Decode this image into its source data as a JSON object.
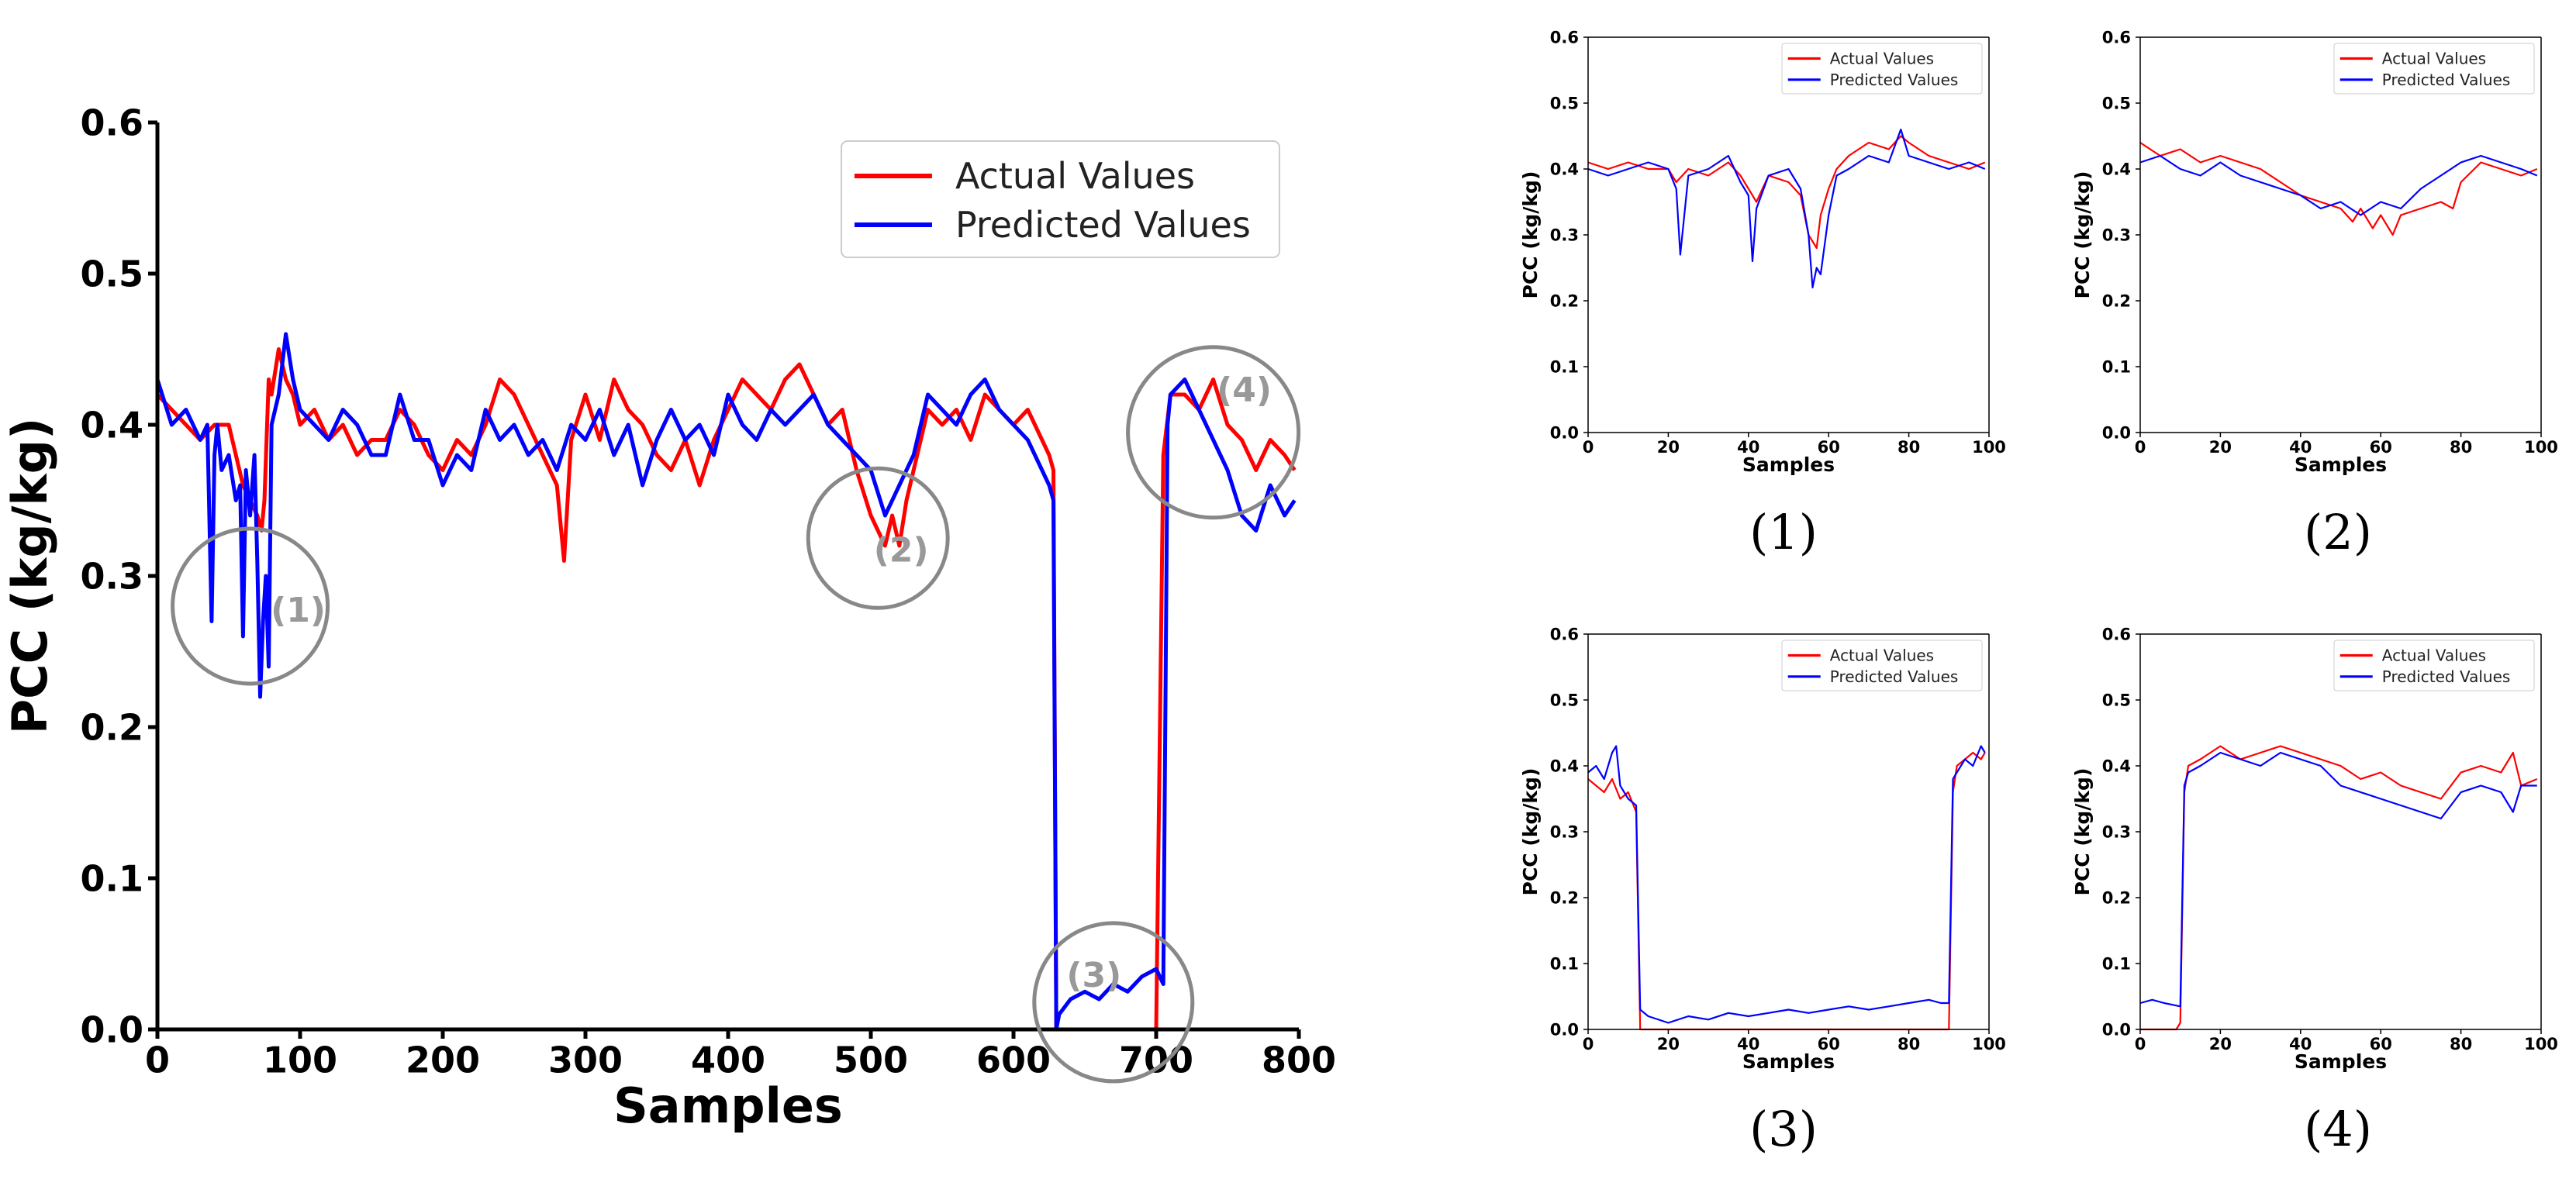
{
  "chart_data": [
    {
      "type": "line",
      "id": "overview",
      "title": "",
      "xlabel": "Samples",
      "ylabel": "PCC (kg/kg)",
      "xlim": [
        0,
        800
      ],
      "ylim": [
        0,
        0.6
      ],
      "xticks": [
        "0",
        "100",
        "200",
        "300",
        "400",
        "500",
        "600",
        "700",
        "800"
      ],
      "yticks": [
        "0.0",
        "0.1",
        "0.2",
        "0.3",
        "0.4",
        "0.5",
        "0.6"
      ],
      "legend": [
        "Actual Values",
        "Predicted Values"
      ],
      "legend_position": "top-right",
      "colors": {
        "actual": "#ff0000",
        "predicted": "#0000ff",
        "circle": "#888888"
      },
      "annotations": [
        {
          "label": "(1)",
          "x": 65,
          "y": 0.28
        },
        {
          "label": "(2)",
          "x": 505,
          "y": 0.325
        },
        {
          "label": "(3)",
          "x": 670,
          "y": 0.018
        },
        {
          "label": "(4)",
          "x": 740,
          "y": 0.395
        }
      ],
      "series": [
        {
          "name": "Actual Values",
          "key": "actual",
          "x": [
            0,
            10,
            20,
            30,
            40,
            50,
            55,
            60,
            65,
            70,
            73,
            75,
            78,
            80,
            85,
            90,
            95,
            100,
            110,
            120,
            130,
            140,
            150,
            160,
            170,
            180,
            190,
            200,
            210,
            220,
            230,
            240,
            250,
            260,
            270,
            280,
            285,
            290,
            300,
            310,
            320,
            330,
            340,
            350,
            360,
            370,
            380,
            390,
            400,
            410,
            420,
            430,
            440,
            450,
            460,
            470,
            480,
            490,
            500,
            505,
            510,
            515,
            520,
            525,
            530,
            540,
            550,
            560,
            570,
            580,
            590,
            600,
            610,
            620,
            625,
            628,
            630,
            632,
            700,
            705,
            710,
            720,
            730,
            740,
            750,
            760,
            770,
            780,
            790,
            797
          ],
          "y": [
            0.42,
            0.41,
            0.4,
            0.39,
            0.4,
            0.4,
            0.38,
            0.36,
            0.35,
            0.34,
            0.33,
            0.35,
            0.43,
            0.42,
            0.45,
            0.43,
            0.42,
            0.4,
            0.41,
            0.39,
            0.4,
            0.38,
            0.39,
            0.39,
            0.41,
            0.4,
            0.38,
            0.37,
            0.39,
            0.38,
            0.4,
            0.43,
            0.42,
            0.4,
            0.38,
            0.36,
            0.31,
            0.39,
            0.42,
            0.39,
            0.43,
            0.41,
            0.4,
            0.38,
            0.37,
            0.39,
            0.36,
            0.39,
            0.41,
            0.43,
            0.42,
            0.41,
            0.43,
            0.44,
            0.42,
            0.4,
            0.41,
            0.37,
            0.34,
            0.33,
            0.32,
            0.34,
            0.32,
            0.35,
            0.37,
            0.41,
            0.4,
            0.41,
            0.39,
            0.42,
            0.41,
            0.4,
            0.41,
            0.39,
            0.38,
            0.37,
            0.0,
            0.0,
            0.0,
            0.38,
            0.42,
            0.42,
            0.41,
            0.43,
            0.4,
            0.39,
            0.37,
            0.39,
            0.38,
            0.37
          ]
        },
        {
          "name": "Predicted Values",
          "key": "predicted",
          "x": [
            0,
            10,
            20,
            30,
            35,
            38,
            40,
            42,
            45,
            50,
            55,
            58,
            60,
            62,
            65,
            68,
            70,
            72,
            74,
            76,
            78,
            80,
            85,
            90,
            95,
            100,
            110,
            120,
            130,
            140,
            150,
            160,
            170,
            180,
            190,
            200,
            210,
            220,
            230,
            240,
            250,
            260,
            270,
            280,
            290,
            300,
            310,
            320,
            330,
            340,
            350,
            360,
            370,
            380,
            390,
            400,
            410,
            420,
            430,
            440,
            450,
            460,
            470,
            480,
            490,
            500,
            510,
            520,
            530,
            540,
            550,
            560,
            570,
            580,
            590,
            600,
            610,
            620,
            625,
            628,
            630,
            632,
            640,
            650,
            660,
            670,
            680,
            690,
            700,
            705,
            708,
            710,
            720,
            730,
            740,
            750,
            760,
            770,
            780,
            790,
            797
          ],
          "y": [
            0.43,
            0.4,
            0.41,
            0.39,
            0.4,
            0.27,
            0.38,
            0.4,
            0.37,
            0.38,
            0.35,
            0.36,
            0.26,
            0.37,
            0.34,
            0.38,
            0.31,
            0.22,
            0.27,
            0.3,
            0.24,
            0.4,
            0.42,
            0.46,
            0.43,
            0.41,
            0.4,
            0.39,
            0.41,
            0.4,
            0.38,
            0.38,
            0.42,
            0.39,
            0.39,
            0.36,
            0.38,
            0.37,
            0.41,
            0.39,
            0.4,
            0.38,
            0.39,
            0.37,
            0.4,
            0.39,
            0.41,
            0.38,
            0.4,
            0.36,
            0.39,
            0.41,
            0.39,
            0.4,
            0.38,
            0.42,
            0.4,
            0.39,
            0.41,
            0.4,
            0.41,
            0.42,
            0.4,
            0.39,
            0.38,
            0.37,
            0.34,
            0.36,
            0.38,
            0.42,
            0.41,
            0.4,
            0.42,
            0.43,
            0.41,
            0.4,
            0.39,
            0.37,
            0.36,
            0.35,
            0.0,
            0.01,
            0.02,
            0.025,
            0.02,
            0.03,
            0.025,
            0.035,
            0.04,
            0.03,
            0.4,
            0.42,
            0.43,
            0.41,
            0.39,
            0.37,
            0.34,
            0.33,
            0.36,
            0.34,
            0.35
          ]
        }
      ]
    },
    {
      "type": "line",
      "id": "zoom-1",
      "caption": "(1)",
      "xlabel": "Samples",
      "ylabel": "PCC (kg/kg)",
      "xlim": [
        0,
        100
      ],
      "ylim": [
        0,
        0.6
      ],
      "xticks": [
        "0",
        "20",
        "40",
        "60",
        "80",
        "100"
      ],
      "yticks": [
        "0.0",
        "0.1",
        "0.2",
        "0.3",
        "0.4",
        "0.5",
        "0.6"
      ],
      "legend": [
        "Actual Values",
        "Predicted Values"
      ],
      "series": [
        {
          "name": "Actual Values",
          "key": "actual",
          "x": [
            0,
            5,
            10,
            15,
            20,
            22,
            25,
            30,
            35,
            38,
            40,
            42,
            45,
            50,
            53,
            55,
            57,
            58,
            60,
            62,
            65,
            70,
            75,
            78,
            80,
            85,
            90,
            95,
            99
          ],
          "y": [
            0.41,
            0.4,
            0.41,
            0.4,
            0.4,
            0.38,
            0.4,
            0.39,
            0.41,
            0.39,
            0.37,
            0.35,
            0.39,
            0.38,
            0.36,
            0.3,
            0.28,
            0.33,
            0.37,
            0.4,
            0.42,
            0.44,
            0.43,
            0.45,
            0.44,
            0.42,
            0.41,
            0.4,
            0.41
          ]
        },
        {
          "name": "Predicted Values",
          "key": "predicted",
          "x": [
            0,
            5,
            10,
            15,
            20,
            22,
            23,
            25,
            30,
            35,
            38,
            40,
            41,
            42,
            45,
            50,
            53,
            55,
            56,
            57,
            58,
            60,
            62,
            65,
            70,
            75,
            78,
            80,
            85,
            90,
            95,
            99
          ],
          "y": [
            0.4,
            0.39,
            0.4,
            0.41,
            0.4,
            0.37,
            0.27,
            0.39,
            0.4,
            0.42,
            0.38,
            0.36,
            0.26,
            0.34,
            0.39,
            0.4,
            0.37,
            0.3,
            0.22,
            0.25,
            0.24,
            0.33,
            0.39,
            0.4,
            0.42,
            0.41,
            0.46,
            0.42,
            0.41,
            0.4,
            0.41,
            0.4
          ]
        }
      ]
    },
    {
      "type": "line",
      "id": "zoom-2",
      "caption": "(2)",
      "xlabel": "Samples",
      "ylabel": "PCC (kg/kg)",
      "xlim": [
        0,
        100
      ],
      "ylim": [
        0,
        0.6
      ],
      "xticks": [
        "0",
        "20",
        "40",
        "60",
        "80",
        "100"
      ],
      "yticks": [
        "0.0",
        "0.1",
        "0.2",
        "0.3",
        "0.4",
        "0.5",
        "0.6"
      ],
      "legend": [
        "Actual Values",
        "Predicted Values"
      ],
      "series": [
        {
          "name": "Actual Values",
          "key": "actual",
          "x": [
            0,
            5,
            10,
            15,
            20,
            25,
            30,
            35,
            40,
            45,
            50,
            53,
            55,
            58,
            60,
            63,
            65,
            70,
            75,
            78,
            80,
            85,
            90,
            95,
            99
          ],
          "y": [
            0.44,
            0.42,
            0.43,
            0.41,
            0.42,
            0.41,
            0.4,
            0.38,
            0.36,
            0.35,
            0.34,
            0.32,
            0.34,
            0.31,
            0.33,
            0.3,
            0.33,
            0.34,
            0.35,
            0.34,
            0.38,
            0.41,
            0.4,
            0.39,
            0.4
          ]
        },
        {
          "name": "Predicted Values",
          "key": "predicted",
          "x": [
            0,
            5,
            10,
            15,
            20,
            25,
            30,
            35,
            40,
            45,
            50,
            55,
            60,
            65,
            70,
            75,
            80,
            85,
            90,
            95,
            99
          ],
          "y": [
            0.41,
            0.42,
            0.4,
            0.39,
            0.41,
            0.39,
            0.38,
            0.37,
            0.36,
            0.34,
            0.35,
            0.33,
            0.35,
            0.34,
            0.37,
            0.39,
            0.41,
            0.42,
            0.41,
            0.4,
            0.39
          ]
        }
      ]
    },
    {
      "type": "line",
      "id": "zoom-3",
      "caption": "(3)",
      "xlabel": "Samples",
      "ylabel": "PCC (kg/kg)",
      "xlim": [
        0,
        100
      ],
      "ylim": [
        0,
        0.6
      ],
      "xticks": [
        "0",
        "20",
        "40",
        "60",
        "80",
        "100"
      ],
      "yticks": [
        "0.0",
        "0.1",
        "0.2",
        "0.3",
        "0.4",
        "0.5",
        "0.6"
      ],
      "legend": [
        "Actual Values",
        "Predicted Values"
      ],
      "series": [
        {
          "name": "Actual Values",
          "key": "actual",
          "x": [
            0,
            2,
            4,
            6,
            8,
            10,
            12,
            13,
            14,
            89,
            90,
            91,
            92,
            94,
            96,
            98,
            99
          ],
          "y": [
            0.38,
            0.37,
            0.36,
            0.38,
            0.35,
            0.36,
            0.33,
            0.0,
            0.0,
            0.0,
            0.0,
            0.36,
            0.4,
            0.41,
            0.42,
            0.41,
            0.42
          ]
        },
        {
          "name": "Predicted Values",
          "key": "predicted",
          "x": [
            0,
            2,
            4,
            6,
            7,
            8,
            10,
            12,
            13,
            15,
            20,
            25,
            30,
            35,
            40,
            45,
            50,
            55,
            60,
            65,
            70,
            75,
            80,
            85,
            88,
            90,
            91,
            92,
            94,
            96,
            98,
            99
          ],
          "y": [
            0.39,
            0.4,
            0.38,
            0.42,
            0.43,
            0.37,
            0.35,
            0.34,
            0.03,
            0.02,
            0.01,
            0.02,
            0.015,
            0.025,
            0.02,
            0.025,
            0.03,
            0.025,
            0.03,
            0.035,
            0.03,
            0.035,
            0.04,
            0.045,
            0.04,
            0.04,
            0.38,
            0.39,
            0.41,
            0.4,
            0.43,
            0.42
          ]
        }
      ]
    },
    {
      "type": "line",
      "id": "zoom-4",
      "caption": "(4)",
      "xlabel": "Samples",
      "ylabel": "PCC (kg/kg)",
      "xlim": [
        0,
        100
      ],
      "ylim": [
        0,
        0.6
      ],
      "xticks": [
        "0",
        "20",
        "40",
        "60",
        "80",
        "100"
      ],
      "yticks": [
        "0.0",
        "0.1",
        "0.2",
        "0.3",
        "0.4",
        "0.5",
        "0.6"
      ],
      "legend": [
        "Actual Values",
        "Predicted Values"
      ],
      "series": [
        {
          "name": "Actual Values",
          "key": "actual",
          "x": [
            0,
            5,
            9,
            10,
            11,
            12,
            15,
            20,
            25,
            30,
            35,
            40,
            45,
            50,
            55,
            60,
            65,
            70,
            75,
            80,
            85,
            90,
            93,
            95,
            99
          ],
          "y": [
            0.0,
            0.0,
            0.0,
            0.01,
            0.36,
            0.4,
            0.41,
            0.43,
            0.41,
            0.42,
            0.43,
            0.42,
            0.41,
            0.4,
            0.38,
            0.39,
            0.37,
            0.36,
            0.35,
            0.39,
            0.4,
            0.39,
            0.42,
            0.37,
            0.38
          ]
        },
        {
          "name": "Predicted Values",
          "key": "predicted",
          "x": [
            0,
            3,
            6,
            10,
            11,
            12,
            15,
            20,
            25,
            30,
            35,
            40,
            45,
            50,
            55,
            60,
            65,
            70,
            75,
            80,
            85,
            90,
            93,
            95,
            99
          ],
          "y": [
            0.04,
            0.045,
            0.04,
            0.035,
            0.37,
            0.39,
            0.4,
            0.42,
            0.41,
            0.4,
            0.42,
            0.41,
            0.4,
            0.37,
            0.36,
            0.35,
            0.34,
            0.33,
            0.32,
            0.36,
            0.37,
            0.36,
            0.33,
            0.37,
            0.37
          ]
        }
      ]
    }
  ]
}
